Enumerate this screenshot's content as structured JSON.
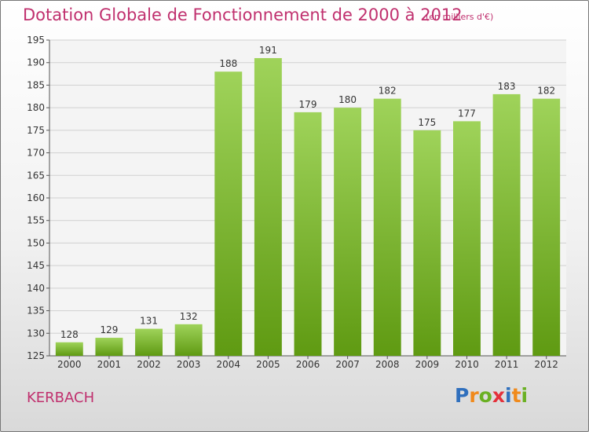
{
  "header": {
    "title": "Dotation Globale de Fonctionnement de 2000 à 2012",
    "units": "(en milliers d'€)"
  },
  "footer": {
    "commune": "KERBACH",
    "logo_letters": [
      {
        "ch": "P",
        "color": "#2f6fbd"
      },
      {
        "ch": "r",
        "color": "#f08a1c"
      },
      {
        "ch": "o",
        "color": "#6ab023"
      },
      {
        "ch": "x",
        "color": "#e4313b"
      },
      {
        "ch": "i",
        "color": "#2f6fbd"
      },
      {
        "ch": "t",
        "color": "#f08a1c"
      },
      {
        "ch": "i",
        "color": "#6ab023"
      }
    ]
  },
  "colors": {
    "accent": "#c0306e",
    "bar_light": "#9fd35a",
    "bar_dark": "#5f9a12",
    "grid": "#d0d0d0"
  },
  "chart_data": {
    "type": "bar",
    "title": "Dotation Globale de Fonctionnement de 2000 à 2012",
    "subtitle": "(en milliers d'€)",
    "xlabel": "",
    "ylabel": "",
    "categories": [
      "2000",
      "2001",
      "2002",
      "2003",
      "2004",
      "2005",
      "2006",
      "2007",
      "2008",
      "2009",
      "2010",
      "2011",
      "2012"
    ],
    "values": [
      128,
      129,
      131,
      132,
      188,
      191,
      179,
      180,
      182,
      175,
      177,
      183,
      182
    ],
    "ylim": [
      125,
      195
    ],
    "yticks": [
      125,
      130,
      135,
      140,
      145,
      150,
      155,
      160,
      165,
      170,
      175,
      180,
      185,
      190,
      195
    ],
    "grid": true,
    "legend": "none"
  }
}
